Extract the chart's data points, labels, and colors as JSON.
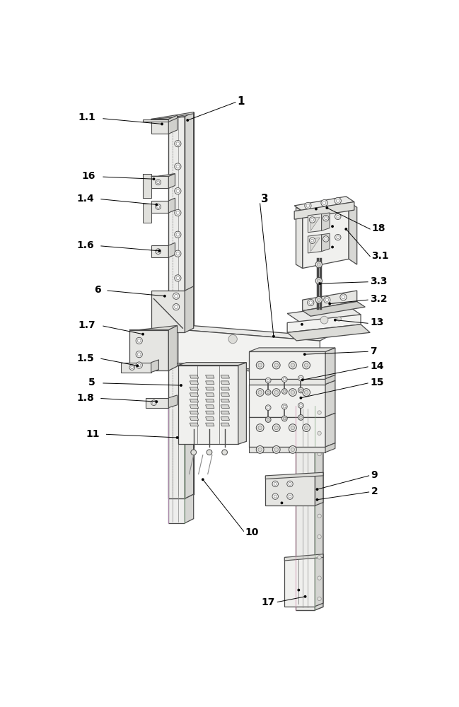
{
  "bg_color": "#ffffff",
  "lc": "#4a4a4a",
  "lc_thin": "#888888",
  "fc_light": "#f2f2f0",
  "fc_mid": "#e2e2de",
  "fc_dark": "#ccccca",
  "fc_white": "#f8f8f8",
  "fc_side": "#d8d8d4",
  "fc_top": "#eaeae8",
  "green_tint": "#e8ede8",
  "pink_tint": "#ede8ed"
}
